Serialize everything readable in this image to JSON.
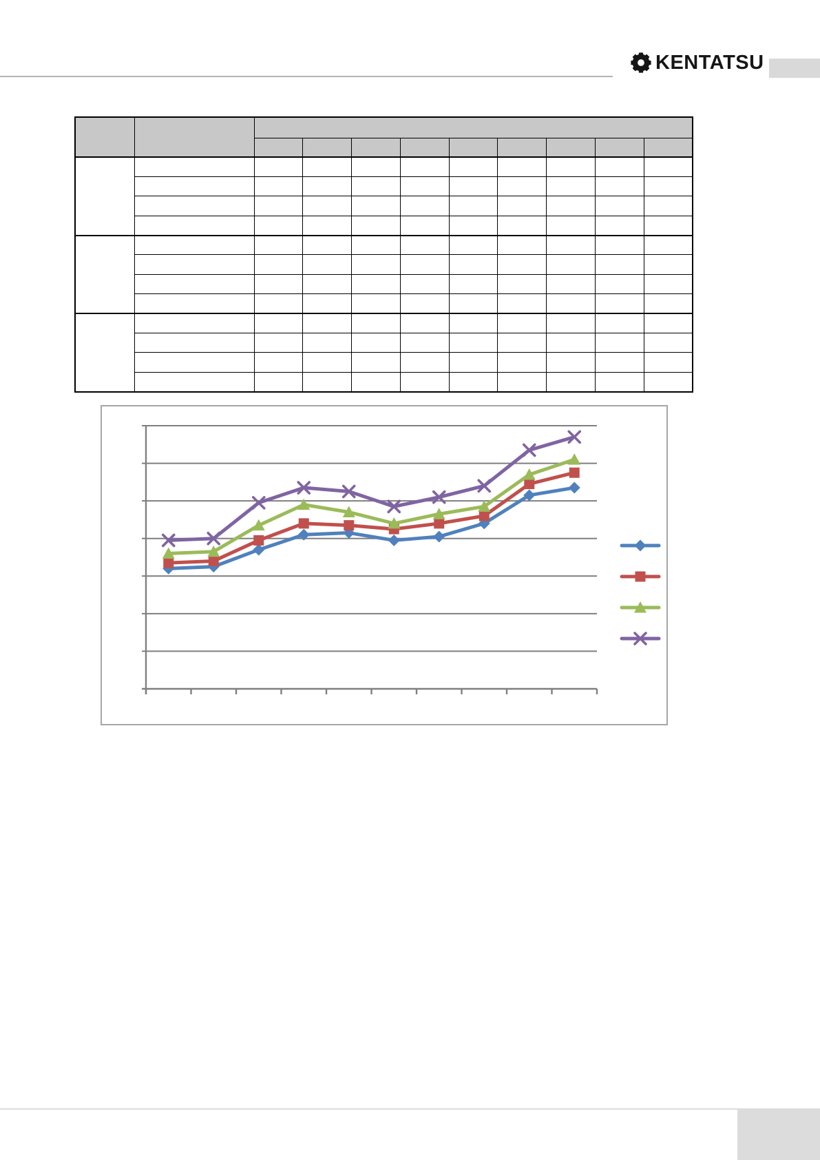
{
  "header": {
    "brand": "KENTATSU",
    "logo_icon": "gear-icon",
    "tab_color": "#d9d9d9"
  },
  "table": {
    "header_fill": "#c8c8c8",
    "border_color": "#000000",
    "header": {
      "group_col_label": "",
      "name_col_label": "",
      "span_label": "",
      "sub_labels": [
        "",
        "",
        "",
        "",
        "",
        "",
        "",
        "",
        ""
      ]
    },
    "groups": [
      {
        "label": "",
        "rows": [
          {
            "label": "",
            "cells": [
              "",
              "",
              "",
              "",
              "",
              "",
              "",
              "",
              ""
            ]
          },
          {
            "label": "",
            "cells": [
              "",
              "",
              "",
              "",
              "",
              "",
              "",
              "",
              ""
            ]
          },
          {
            "label": "",
            "cells": [
              "",
              "",
              "",
              "",
              "",
              "",
              "",
              "",
              ""
            ]
          },
          {
            "label": "",
            "cells": [
              "",
              "",
              "",
              "",
              "",
              "",
              "",
              "",
              ""
            ]
          }
        ]
      },
      {
        "label": "",
        "rows": [
          {
            "label": "",
            "cells": [
              "",
              "",
              "",
              "",
              "",
              "",
              "",
              "",
              ""
            ]
          },
          {
            "label": "",
            "cells": [
              "",
              "",
              "",
              "",
              "",
              "",
              "",
              "",
              ""
            ]
          },
          {
            "label": "",
            "cells": [
              "",
              "",
              "",
              "",
              "",
              "",
              "",
              "",
              ""
            ]
          },
          {
            "label": "",
            "cells": [
              "",
              "",
              "",
              "",
              "",
              "",
              "",
              "",
              ""
            ]
          }
        ]
      },
      {
        "label": "",
        "rows": [
          {
            "label": "",
            "cells": [
              "",
              "",
              "",
              "",
              "",
              "",
              "",
              "",
              ""
            ]
          },
          {
            "label": "",
            "cells": [
              "",
              "",
              "",
              "",
              "",
              "",
              "",
              "",
              ""
            ]
          },
          {
            "label": "",
            "cells": [
              "",
              "",
              "",
              "",
              "",
              "",
              "",
              "",
              ""
            ]
          },
          {
            "label": "",
            "cells": [
              "",
              "",
              "",
              "",
              "",
              "",
              "",
              "",
              ""
            ]
          }
        ]
      }
    ]
  },
  "chart_data": {
    "type": "line",
    "title": "",
    "xlabel": "",
    "ylabel": "",
    "categories": [
      "",
      "",
      "",
      "",
      "",
      "",
      "",
      "",
      "",
      ""
    ],
    "x_tick_count": 11,
    "ylim": [
      0,
      7
    ],
    "y_gridline_interval": 1,
    "grid": true,
    "gridline_color": "#7f7f7f",
    "axis_color": "#7f7f7f",
    "tick_labels_visible": false,
    "legend_position": "right",
    "legend_labels": [
      "",
      "",
      "",
      ""
    ],
    "series": [
      {
        "name": "series-1-diamond",
        "marker": "diamond",
        "color": "#4F81BD",
        "values": [
          3.2,
          3.25,
          3.7,
          4.1,
          4.15,
          3.95,
          4.05,
          4.4,
          5.15,
          5.35
        ]
      },
      {
        "name": "series-2-square",
        "marker": "square",
        "color": "#C0504D",
        "values": [
          3.35,
          3.4,
          3.95,
          4.4,
          4.35,
          4.25,
          4.4,
          4.6,
          5.45,
          5.75
        ]
      },
      {
        "name": "series-3-triangle",
        "marker": "triangle",
        "color": "#9BBB59",
        "values": [
          3.6,
          3.65,
          4.35,
          4.9,
          4.7,
          4.4,
          4.65,
          4.85,
          5.7,
          6.1
        ]
      },
      {
        "name": "series-4-x",
        "marker": "x",
        "color": "#8064A2",
        "values": [
          3.95,
          4.0,
          4.95,
          5.35,
          5.25,
          4.85,
          5.1,
          5.4,
          6.35,
          6.7
        ]
      }
    ]
  }
}
